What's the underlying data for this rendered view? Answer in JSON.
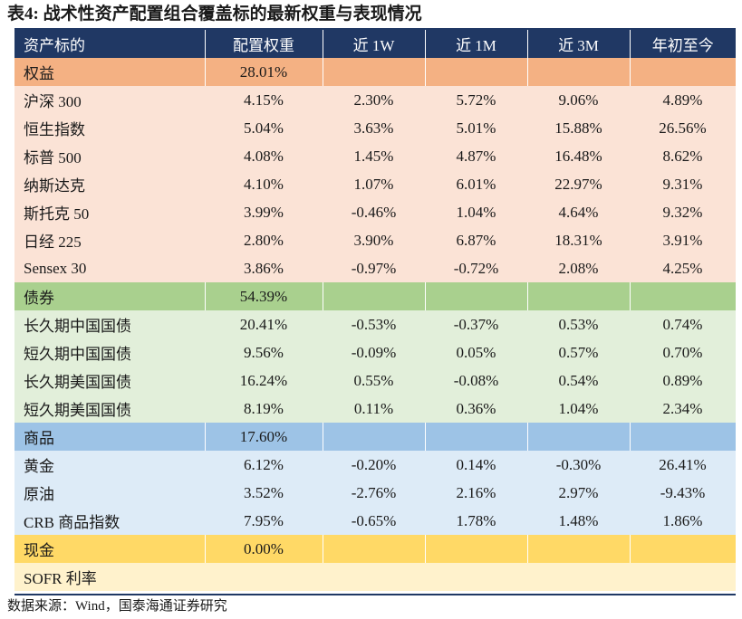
{
  "title": "表4:  战术性资产配置组合覆盖标的最新权重与表现情况",
  "columns": [
    "资产标的",
    "配置权重",
    "近 1W",
    "近 1M",
    "近 3M",
    "年初至今"
  ],
  "groups": [
    {
      "category": "权益",
      "weight": "28.01%",
      "rows": [
        {
          "name": "沪深 300",
          "weight": "4.15%",
          "w1": "2.30%",
          "m1": "5.72%",
          "m3": "9.06%",
          "ytd": "4.89%"
        },
        {
          "name": "恒生指数",
          "weight": "5.04%",
          "w1": "3.63%",
          "m1": "5.01%",
          "m3": "15.88%",
          "ytd": "26.56%"
        },
        {
          "name": "标普 500",
          "weight": "4.08%",
          "w1": "1.45%",
          "m1": "4.87%",
          "m3": "16.48%",
          "ytd": "8.62%"
        },
        {
          "name": "纳斯达克",
          "weight": "4.10%",
          "w1": "1.07%",
          "m1": "6.01%",
          "m3": "22.97%",
          "ytd": "9.31%"
        },
        {
          "name": "斯托克 50",
          "weight": "3.99%",
          "w1": "-0.46%",
          "m1": "1.04%",
          "m3": "4.64%",
          "ytd": "9.32%"
        },
        {
          "name": "日经 225",
          "weight": "2.80%",
          "w1": "3.90%",
          "m1": "6.87%",
          "m3": "18.31%",
          "ytd": "3.91%"
        },
        {
          "name": "Sensex 30",
          "weight": "3.86%",
          "w1": "-0.97%",
          "m1": "-0.72%",
          "m3": "2.08%",
          "ytd": "4.25%"
        }
      ]
    },
    {
      "category": "债券",
      "weight": "54.39%",
      "rows": [
        {
          "name": "长久期中国国债",
          "weight": "20.41%",
          "w1": "-0.53%",
          "m1": "-0.37%",
          "m3": "0.53%",
          "ytd": "0.74%"
        },
        {
          "name": "短久期中国国债",
          "weight": "9.56%",
          "w1": "-0.09%",
          "m1": "0.05%",
          "m3": "0.57%",
          "ytd": "0.70%"
        },
        {
          "name": "长久期美国国债",
          "weight": "16.24%",
          "w1": "0.55%",
          "m1": "-0.08%",
          "m3": "0.54%",
          "ytd": "0.89%"
        },
        {
          "name": "短久期美国国债",
          "weight": "8.19%",
          "w1": "0.11%",
          "m1": "0.36%",
          "m3": "1.04%",
          "ytd": "2.34%"
        }
      ]
    },
    {
      "category": "商品",
      "weight": "17.60%",
      "rows": [
        {
          "name": "黄金",
          "weight": "6.12%",
          "w1": "-0.20%",
          "m1": "0.14%",
          "m3": "-0.30%",
          "ytd": "26.41%"
        },
        {
          "name": "原油",
          "weight": "3.52%",
          "w1": "-2.76%",
          "m1": "2.16%",
          "m3": "2.97%",
          "ytd": "-9.43%"
        },
        {
          "name": "CRB 商品指数",
          "weight": "7.95%",
          "w1": "-0.65%",
          "m1": "1.78%",
          "m3": "1.48%",
          "ytd": "1.86%"
        }
      ]
    },
    {
      "category": "现金",
      "weight": "0.00%",
      "rows": [
        {
          "name": "SOFR 利率",
          "weight": "",
          "w1": "",
          "m1": "",
          "m3": "",
          "ytd": ""
        }
      ]
    }
  ],
  "source": "数据来源：Wind，国泰海通证券研究",
  "colors": {
    "header_bg": "#203864",
    "equity_category": "#f4b183",
    "equity_row": "#fbe3d6",
    "bond_category": "#a9d08e",
    "bond_row": "#e2efda",
    "commodity_category": "#9dc3e6",
    "commodity_row": "#ddebf7",
    "cash_category": "#ffd966",
    "cash_row": "#fff2cc"
  }
}
